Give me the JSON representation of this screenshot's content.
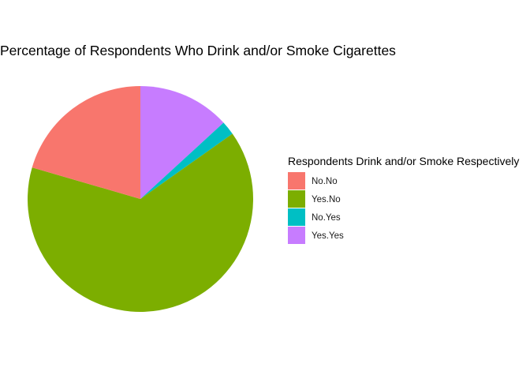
{
  "chart_data": {
    "type": "pie",
    "title": "Percentage of Respondents Who Drink and/or Smoke Cigarettes",
    "legend_title": "Respondents Drink and/or Smoke Respectively",
    "legend_position": "right",
    "categories": [
      "No.No",
      "Yes.No",
      "No.Yes",
      "Yes.Yes"
    ],
    "values": [
      20.5,
      64.3,
      2.0,
      13.2
    ],
    "unit": "percent",
    "colors": [
      "#F8766D",
      "#7CAE00",
      "#00BFC4",
      "#C77CFF"
    ],
    "slice_order_clockwise_from_top": [
      "Yes.Yes",
      "No.Yes",
      "Yes.No",
      "No.No"
    ]
  }
}
